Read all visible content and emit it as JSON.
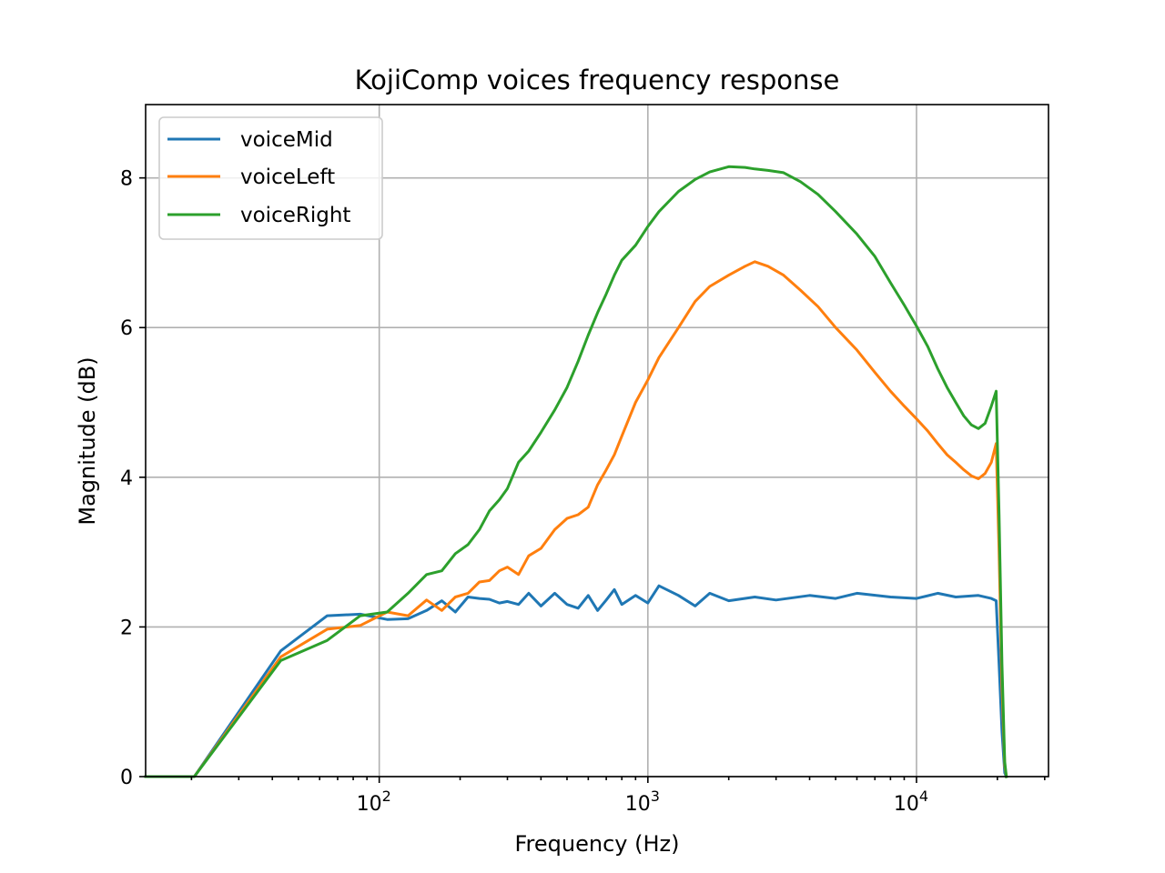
{
  "chart_data": {
    "type": "line",
    "title": "KojiComp voices frequency response",
    "xlabel": "Frequency (Hz)",
    "ylabel": "Magnitude (dB)",
    "xscale": "log",
    "xlim": [
      13.5,
      31000
    ],
    "ylim": [
      0,
      8.98
    ],
    "grid": true,
    "legend_position": "top-left",
    "xticks": [
      {
        "value": 100,
        "base": "10",
        "exp": "2"
      },
      {
        "value": 1000,
        "base": "10",
        "exp": "3"
      },
      {
        "value": 10000,
        "base": "10",
        "exp": "4"
      }
    ],
    "yticks": [
      0,
      2,
      4,
      6,
      8
    ],
    "series": [
      {
        "name": "voiceMid",
        "color": "#1f77b4",
        "x": [
          13.5,
          20.5,
          43,
          64,
          85,
          107,
          128,
          150,
          171,
          192,
          214,
          236,
          257,
          280,
          300,
          330,
          360,
          400,
          450,
          500,
          550,
          600,
          650,
          700,
          750,
          800,
          900,
          1000,
          1100,
          1300,
          1500,
          1700,
          2000,
          2500,
          3000,
          4000,
          5000,
          6000,
          8000,
          10000,
          12000,
          14000,
          17000,
          19000,
          19800,
          20300,
          20800,
          21300,
          21600
        ],
        "y": [
          0,
          0,
          1.68,
          2.15,
          2.17,
          2.1,
          2.11,
          2.22,
          2.35,
          2.2,
          2.4,
          2.38,
          2.37,
          2.32,
          2.34,
          2.3,
          2.45,
          2.28,
          2.45,
          2.3,
          2.25,
          2.42,
          2.22,
          2.36,
          2.5,
          2.3,
          2.42,
          2.32,
          2.55,
          2.42,
          2.28,
          2.45,
          2.35,
          2.4,
          2.36,
          2.42,
          2.38,
          2.45,
          2.4,
          2.38,
          2.45,
          2.4,
          2.42,
          2.38,
          2.35,
          1.5,
          0.6,
          0.05,
          0
        ]
      },
      {
        "name": "voiceLeft",
        "color": "#ff7f0e",
        "x": [
          13.5,
          20.5,
          43,
          64,
          85,
          107,
          128,
          150,
          171,
          192,
          214,
          236,
          257,
          280,
          300,
          330,
          360,
          400,
          450,
          500,
          550,
          600,
          650,
          700,
          750,
          800,
          900,
          1000,
          1100,
          1300,
          1500,
          1700,
          2000,
          2300,
          2500,
          2800,
          3200,
          3700,
          4300,
          5000,
          6000,
          7000,
          8000,
          9000,
          10000,
          11000,
          12000,
          13000,
          14000,
          15000,
          16000,
          17000,
          18000,
          19000,
          19800,
          20300,
          20800,
          21300,
          21600
        ],
        "y": [
          0,
          0,
          1.6,
          1.97,
          2.02,
          2.2,
          2.15,
          2.36,
          2.22,
          2.4,
          2.45,
          2.6,
          2.62,
          2.75,
          2.8,
          2.7,
          2.95,
          3.05,
          3.3,
          3.45,
          3.5,
          3.6,
          3.9,
          4.1,
          4.3,
          4.55,
          5.0,
          5.3,
          5.6,
          6.0,
          6.35,
          6.55,
          6.7,
          6.82,
          6.88,
          6.82,
          6.7,
          6.5,
          6.28,
          6.0,
          5.7,
          5.4,
          5.15,
          4.95,
          4.78,
          4.62,
          4.45,
          4.3,
          4.2,
          4.1,
          4.02,
          3.98,
          4.05,
          4.2,
          4.45,
          3.0,
          1.2,
          0.15,
          0
        ]
      },
      {
        "name": "voiceRight",
        "color": "#2ca02c",
        "x": [
          13.5,
          20.5,
          43,
          64,
          85,
          107,
          128,
          150,
          171,
          192,
          214,
          236,
          257,
          280,
          300,
          330,
          360,
          400,
          450,
          500,
          550,
          600,
          650,
          700,
          750,
          800,
          900,
          1000,
          1100,
          1300,
          1500,
          1700,
          2000,
          2300,
          2500,
          2800,
          3200,
          3700,
          4300,
          5000,
          6000,
          7000,
          8000,
          9000,
          10000,
          11000,
          12000,
          13000,
          14000,
          15000,
          16000,
          17000,
          18000,
          19000,
          19800,
          20300,
          20800,
          21300,
          21600
        ],
        "y": [
          0,
          0,
          1.55,
          1.82,
          2.15,
          2.2,
          2.45,
          2.7,
          2.75,
          2.98,
          3.1,
          3.3,
          3.55,
          3.7,
          3.85,
          4.2,
          4.35,
          4.6,
          4.9,
          5.2,
          5.55,
          5.9,
          6.2,
          6.45,
          6.7,
          6.9,
          7.1,
          7.35,
          7.55,
          7.82,
          7.98,
          8.08,
          8.15,
          8.14,
          8.12,
          8.1,
          8.07,
          7.95,
          7.78,
          7.55,
          7.25,
          6.95,
          6.6,
          6.3,
          6.02,
          5.75,
          5.45,
          5.2,
          5.0,
          4.82,
          4.7,
          4.65,
          4.72,
          4.95,
          5.15,
          3.5,
          1.5,
          0.2,
          0
        ]
      }
    ]
  }
}
